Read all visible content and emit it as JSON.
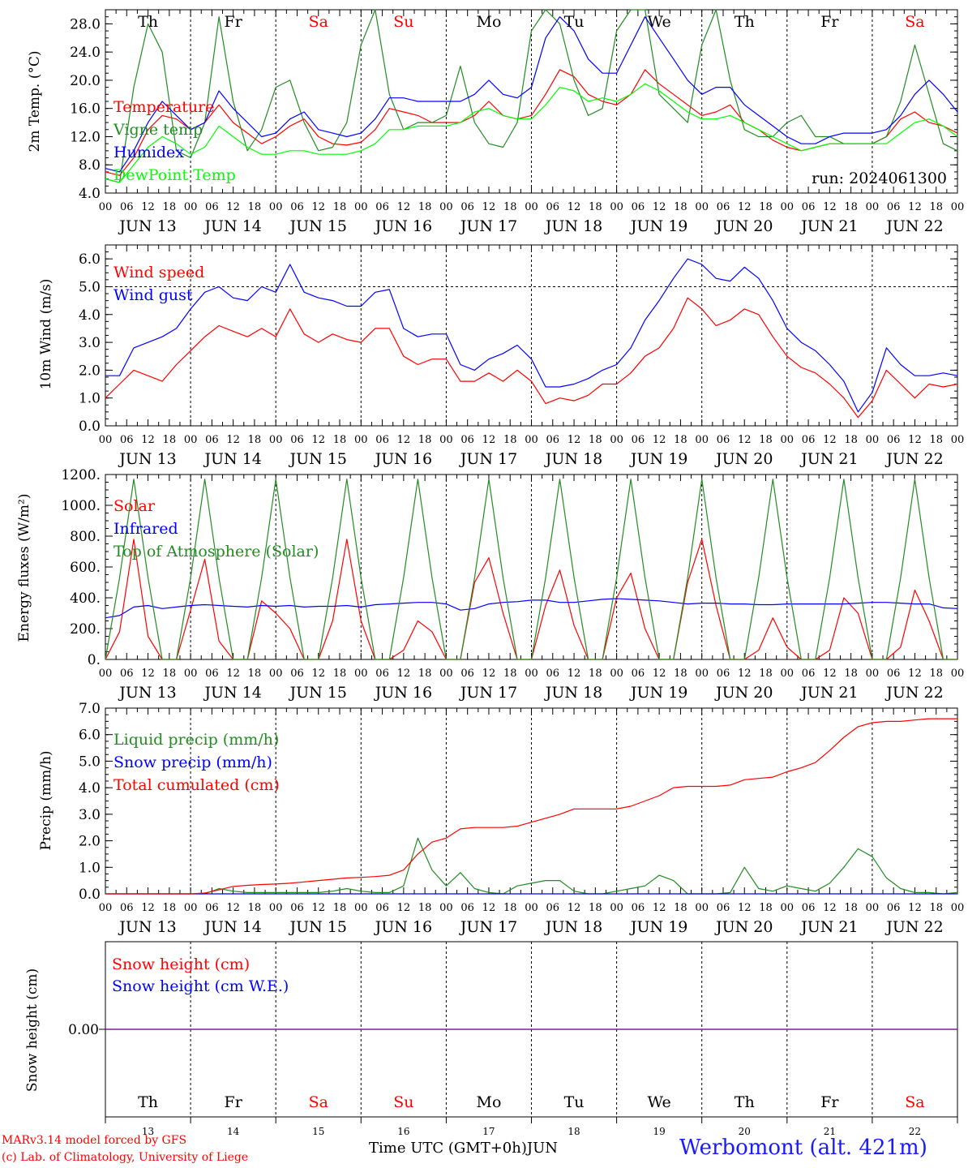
{
  "days": {
    "weekday_top": [
      "Th",
      "Fr",
      "Sa",
      "Su",
      "Mo",
      "Tu",
      "We",
      "Th",
      "Fr",
      "Sa"
    ],
    "weekday_colors": [
      "#000000",
      "#000000",
      "#ff0000",
      "#ff0000",
      "#000000",
      "#000000",
      "#000000",
      "#000000",
      "#000000",
      "#ff0000"
    ],
    "date_labels": [
      "JUN 13",
      "JUN 14",
      "JUN 15",
      "JUN 16",
      "JUN 17",
      "JUN 18",
      "JUN 19",
      "JUN 20",
      "JUN 21",
      "JUN 22"
    ],
    "hour_ticks": [
      "00",
      "06",
      "12",
      "18"
    ],
    "hour_end": "00",
    "day_numbers": [
      "13",
      "14",
      "15",
      "16",
      "17",
      "18",
      "19",
      "20",
      "21",
      "22"
    ]
  },
  "footer": {
    "model": "MARv3.14 model forced by GFS",
    "lab": "(c) Lab. of Climatology, University of Liege",
    "xaxis": "Time UTC (GMT+0h)",
    "month": "JUN",
    "station": "Werbomont (alt. 421m)"
  },
  "chart_data": [
    {
      "type": "line",
      "ylabel": "2m Temp. (°C)",
      "ylim": [
        4,
        30
      ],
      "yticks": [
        "4.0",
        "8.0",
        "12.0",
        "16.0",
        "20.0",
        "24.0",
        "28.0"
      ],
      "annotation": "run: 2024061300",
      "x": "hours since 00 UTC JUN 13, step 6",
      "series": [
        {
          "name": "Temperature",
          "color": "#ff0000",
          "values": [
            7,
            6.5,
            9,
            13,
            15,
            14.5,
            13,
            14,
            16.5,
            14,
            12.5,
            11,
            12,
            13.5,
            14.5,
            12,
            11,
            10.8,
            11.2,
            13,
            16,
            15.5,
            15,
            14,
            14,
            14,
            15,
            17,
            15,
            14.5,
            15,
            18,
            21.5,
            20.5,
            18,
            17,
            16.5,
            18,
            21.5,
            19.5,
            18,
            16.5,
            15,
            15.5,
            16.5,
            14,
            13,
            11.5,
            10.5,
            10,
            10.5,
            11,
            11,
            11,
            11,
            12,
            14.5,
            15.5,
            14,
            13.5,
            12.5
          ]
        },
        {
          "name": "Vigne temp",
          "color": "#228b22",
          "values": [
            6,
            5.5,
            19,
            28,
            24,
            10,
            9,
            14,
            29,
            17,
            10,
            13,
            19,
            20,
            14,
            10,
            10.5,
            14,
            25,
            30,
            18,
            13,
            14,
            14,
            15,
            22,
            14,
            11,
            10.5,
            14,
            27,
            31,
            28,
            20,
            15,
            16,
            27,
            31,
            30,
            18,
            16,
            14,
            25,
            31,
            20,
            13,
            12,
            12,
            14,
            15,
            12,
            12,
            11,
            11,
            11,
            12,
            17,
            25,
            18,
            11,
            10
          ]
        },
        {
          "name": "Humidex",
          "color": "#0000ff",
          "values": [
            7.5,
            7,
            10,
            14,
            17,
            15,
            13,
            14,
            18.5,
            16,
            14,
            12,
            12.5,
            14.5,
            15.5,
            13,
            12.5,
            12,
            12.5,
            14.5,
            17.5,
            17.5,
            17,
            17,
            17,
            17,
            18,
            20,
            18,
            17.5,
            19,
            26,
            29,
            27,
            23,
            21,
            21,
            25,
            29,
            26,
            23,
            20,
            18,
            19,
            19,
            16.5,
            15,
            13.5,
            12,
            11,
            11,
            12,
            12.5,
            12.5,
            12.5,
            13,
            15,
            18,
            20,
            18,
            15.5
          ]
        },
        {
          "name": "DewPoint Temp",
          "color": "#00ff00",
          "values": [
            6,
            5.5,
            8,
            10.5,
            12,
            11,
            9.5,
            10.5,
            13.5,
            12,
            10.5,
            9.5,
            9.5,
            10,
            10,
            9.5,
            9.5,
            9.5,
            10,
            11,
            13,
            13,
            13.5,
            13.5,
            13.5,
            14,
            15.5,
            16,
            15,
            14.5,
            14.5,
            16.5,
            19,
            18.5,
            17,
            17.5,
            17,
            18,
            19.5,
            18.5,
            17,
            15.5,
            14.5,
            14.5,
            15,
            14,
            13,
            12,
            11,
            10,
            10.5,
            11,
            11,
            11,
            11,
            11,
            12.5,
            14,
            14.5,
            13.5,
            12
          ]
        }
      ]
    },
    {
      "type": "line",
      "ylabel": "10m Wind (m/s)",
      "ylim": [
        0,
        6.5
      ],
      "yticks": [
        "0.0",
        "1.0",
        "2.0",
        "3.0",
        "4.0",
        "5.0",
        "6.0"
      ],
      "refline": 5.0,
      "x": "hours since 00 UTC JUN 13, step 6",
      "series": [
        {
          "name": "Wind speed",
          "color": "#ff0000",
          "values": [
            1,
            1.5,
            2,
            1.8,
            1.6,
            2.2,
            2.7,
            3.2,
            3.6,
            3.4,
            3.2,
            3.5,
            3.2,
            4.2,
            3.3,
            3,
            3.3,
            3.1,
            3,
            3.5,
            3.5,
            2.5,
            2.2,
            2.4,
            2.4,
            1.6,
            1.6,
            1.9,
            1.6,
            2,
            1.6,
            0.8,
            1,
            0.9,
            1.1,
            1.5,
            1.5,
            1.9,
            2.5,
            2.8,
            3.5,
            4.6,
            4.2,
            3.6,
            3.8,
            4.2,
            4,
            3.2,
            2.5,
            2.1,
            1.9,
            1.5,
            1.0,
            0.3,
            0.9,
            2.0,
            1.5,
            1.0,
            1.5,
            1.4,
            1.5
          ]
        },
        {
          "name": "Wind gust",
          "color": "#0000ff",
          "values": [
            1.8,
            1.8,
            2.8,
            3,
            3.2,
            3.5,
            4.2,
            4.8,
            5,
            4.6,
            4.5,
            5,
            4.8,
            5.8,
            4.8,
            4.6,
            4.5,
            4.3,
            4.3,
            4.8,
            4.9,
            3.5,
            3.2,
            3.3,
            3.3,
            2.2,
            2,
            2.4,
            2.6,
            2.9,
            2.4,
            1.4,
            1.4,
            1.5,
            1.7,
            2,
            2.2,
            2.8,
            3.8,
            4.5,
            5.3,
            6,
            5.8,
            5.3,
            5.2,
            5.7,
            5.3,
            4.5,
            3.5,
            3,
            2.7,
            2.2,
            1.6,
            0.5,
            1.2,
            2.8,
            2.2,
            1.8,
            1.8,
            1.9,
            1.8
          ]
        }
      ]
    },
    {
      "type": "line",
      "ylabel": "Energy fluxes (W/m²)",
      "ylim": [
        0,
        1200
      ],
      "yticks": [
        "0.",
        "200.",
        "400.",
        "600.",
        "800.",
        "1000.",
        "1200."
      ],
      "x": "hours since 00 UTC JUN 13, step 6",
      "series": [
        {
          "name": "Solar",
          "color": "#ff0000",
          "values": [
            0,
            180,
            780,
            150,
            0,
            0,
            320,
            650,
            120,
            0,
            0,
            380,
            300,
            200,
            0,
            0,
            250,
            780,
            250,
            0,
            0,
            60,
            250,
            180,
            0,
            0,
            500,
            660,
            300,
            0,
            0,
            350,
            580,
            220,
            0,
            0,
            400,
            560,
            200,
            0,
            0,
            500,
            780,
            350,
            0,
            0,
            60,
            270,
            80,
            0,
            0,
            60,
            400,
            300,
            0,
            0,
            80,
            450,
            250,
            0,
            0
          ]
        },
        {
          "name": "Infrared",
          "color": "#0000ff",
          "values": [
            270,
            285,
            340,
            350,
            330,
            340,
            350,
            355,
            350,
            345,
            340,
            350,
            345,
            350,
            340,
            345,
            345,
            350,
            340,
            355,
            360,
            365,
            370,
            370,
            360,
            320,
            330,
            360,
            370,
            375,
            385,
            385,
            370,
            370,
            380,
            390,
            395,
            390,
            385,
            380,
            370,
            360,
            365,
            365,
            360,
            360,
            355,
            355,
            360,
            360,
            360,
            360,
            360,
            365,
            370,
            370,
            365,
            360,
            360,
            335,
            330
          ]
        },
        {
          "name": "Top of Atmosphere (Solar)",
          "color": "#228b22",
          "values": [
            0,
            530,
            1170,
            530,
            0,
            0,
            530,
            1170,
            530,
            0,
            0,
            530,
            1170,
            530,
            0,
            0,
            530,
            1170,
            530,
            0,
            0,
            530,
            1170,
            530,
            0,
            0,
            530,
            1170,
            530,
            0,
            0,
            530,
            1170,
            530,
            0,
            0,
            530,
            1170,
            530,
            0,
            0,
            530,
            1170,
            530,
            0,
            0,
            530,
            1170,
            530,
            0,
            0,
            530,
            1170,
            530,
            0,
            0,
            530,
            1170,
            530,
            0,
            0
          ]
        }
      ]
    },
    {
      "type": "line",
      "ylabel": "Precip (mm/h)",
      "ylim": [
        0,
        7
      ],
      "yticks": [
        "0.0",
        "1.0",
        "2.0",
        "3.0",
        "4.0",
        "5.0",
        "6.0",
        "7.0"
      ],
      "x": "hours since 00 UTC JUN 13, step 6",
      "series": [
        {
          "name": "Liquid precip (mm/h)",
          "color": "#228b22",
          "values": [
            0,
            0,
            0,
            0,
            0,
            0,
            0,
            0,
            0.2,
            0.1,
            0.05,
            0.05,
            0.05,
            0.05,
            0.05,
            0.05,
            0.1,
            0.2,
            0.1,
            0.05,
            0.05,
            0.3,
            2.1,
            0.9,
            0.3,
            0.8,
            0.2,
            0.05,
            0,
            0.3,
            0.4,
            0.5,
            0.5,
            0.1,
            0,
            0,
            0.1,
            0.2,
            0.3,
            0.7,
            0.5,
            0,
            0,
            0,
            0.05,
            1,
            0.2,
            0.1,
            0.3,
            0.2,
            0.1,
            0.4,
            1.0,
            1.7,
            1.4,
            0.6,
            0.2,
            0.05,
            0.05,
            0,
            0.05
          ]
        },
        {
          "name": "Snow precip (mm/h)",
          "color": "#0000ff",
          "values": [
            0,
            0,
            0,
            0,
            0,
            0,
            0,
            0,
            0,
            0,
            0,
            0,
            0,
            0,
            0,
            0,
            0,
            0,
            0,
            0,
            0,
            0,
            0,
            0,
            0,
            0,
            0,
            0,
            0,
            0,
            0,
            0,
            0,
            0,
            0,
            0,
            0,
            0,
            0,
            0,
            0,
            0,
            0,
            0,
            0,
            0,
            0,
            0,
            0,
            0,
            0,
            0,
            0,
            0,
            0,
            0,
            0,
            0,
            0,
            0,
            0
          ]
        },
        {
          "name": "Total cumulated (cm)",
          "color": "#ff0000",
          "values": [
            0,
            0,
            0,
            0,
            0,
            0,
            0,
            0.03,
            0.15,
            0.28,
            0.32,
            0.35,
            0.37,
            0.4,
            0.45,
            0.5,
            0.55,
            0.6,
            0.62,
            0.65,
            0.7,
            0.9,
            1.5,
            1.95,
            2.1,
            2.45,
            2.5,
            2.5,
            2.5,
            2.55,
            2.7,
            2.85,
            3.0,
            3.2,
            3.2,
            3.2,
            3.2,
            3.3,
            3.5,
            3.7,
            4.0,
            4.05,
            4.05,
            4.05,
            4.1,
            4.3,
            4.35,
            4.4,
            4.6,
            4.75,
            4.95,
            5.4,
            5.9,
            6.3,
            6.45,
            6.5,
            6.5,
            6.55,
            6.6,
            6.6,
            6.6
          ]
        }
      ]
    },
    {
      "type": "line",
      "ylabel": "Snow height (cm)",
      "yticks": [
        "0.00"
      ],
      "x": "hours since 00 UTC JUN 13, step 6",
      "series": [
        {
          "name": "Snow height (cm)",
          "color": "#ff0000",
          "values": [
            0,
            0
          ]
        },
        {
          "name": "Snow height (cm W.E.)",
          "color": "#0000ff",
          "values": [
            0,
            0
          ]
        }
      ]
    }
  ]
}
